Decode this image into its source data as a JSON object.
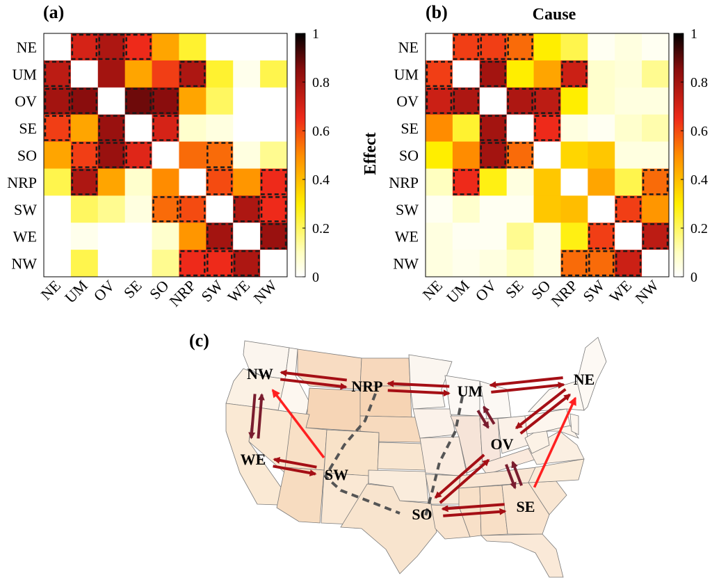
{
  "panels": {
    "a": {
      "label": "(a)"
    },
    "b": {
      "label": "(b)",
      "title": "Cause",
      "ylabel": "Effect"
    },
    "c": {
      "label": "(c)"
    }
  },
  "colorbar": {
    "ticks": [
      "0",
      "0.2",
      "0.4",
      "0.6",
      "0.8",
      "1"
    ],
    "colormap": "hot-reversed"
  },
  "colors": {
    "arrow_dark": "#a50f15",
    "arrow_light": "#ff2020",
    "arrow_maroon": "#7a1c2e",
    "divider": "#555555",
    "dashed_box": "#1a1a1a"
  },
  "chart_data": [
    {
      "type": "heatmap",
      "title": "",
      "panel": "(a)",
      "rows": [
        "NE",
        "UM",
        "OV",
        "SE",
        "SO",
        "NRP",
        "SW",
        "WE",
        "NW"
      ],
      "cols": [
        "NE",
        "UM",
        "OV",
        "SE",
        "SO",
        "NRP",
        "SW",
        "WE",
        "NW"
      ],
      "values": [
        [
          0.0,
          0.7,
          0.78,
          0.65,
          0.45,
          0.25,
          0.0,
          0.0,
          0.0
        ],
        [
          0.75,
          0.0,
          0.8,
          0.45,
          0.62,
          0.78,
          0.25,
          0.03,
          0.22
        ],
        [
          0.8,
          0.85,
          0.0,
          0.88,
          0.85,
          0.45,
          0.2,
          0.0,
          0.0
        ],
        [
          0.62,
          0.45,
          0.82,
          0.0,
          0.7,
          0.08,
          0.05,
          0.0,
          0.0
        ],
        [
          0.45,
          0.62,
          0.82,
          0.68,
          0.0,
          0.55,
          0.55,
          0.05,
          0.15
        ],
        [
          0.22,
          0.78,
          0.45,
          0.08,
          0.5,
          0.0,
          0.6,
          0.48,
          0.65
        ],
        [
          0.0,
          0.2,
          0.15,
          0.05,
          0.55,
          0.6,
          0.0,
          0.78,
          0.65
        ],
        [
          0.0,
          0.03,
          0.0,
          0.0,
          0.08,
          0.48,
          0.8,
          0.0,
          0.82
        ],
        [
          0.0,
          0.22,
          0.0,
          0.0,
          0.15,
          0.65,
          0.65,
          0.78,
          0.0
        ]
      ],
      "zlim": [
        0,
        1
      ],
      "highlighted": [
        [
          0,
          1
        ],
        [
          0,
          2
        ],
        [
          0,
          3
        ],
        [
          1,
          0
        ],
        [
          1,
          5
        ],
        [
          2,
          0
        ],
        [
          2,
          1
        ],
        [
          2,
          3
        ],
        [
          2,
          4
        ],
        [
          3,
          0
        ],
        [
          3,
          2
        ],
        [
          3,
          4
        ],
        [
          4,
          1
        ],
        [
          4,
          2
        ],
        [
          4,
          3
        ],
        [
          4,
          6
        ],
        [
          5,
          1
        ],
        [
          5,
          6
        ],
        [
          5,
          8
        ],
        [
          6,
          4
        ],
        [
          6,
          5
        ],
        [
          6,
          7
        ],
        [
          6,
          8
        ],
        [
          7,
          6
        ],
        [
          7,
          8
        ],
        [
          8,
          5
        ],
        [
          8,
          6
        ],
        [
          8,
          7
        ]
      ]
    },
    {
      "type": "heatmap",
      "title": "Cause",
      "ylabel": "Effect",
      "panel": "(b)",
      "rows": [
        "NE",
        "UM",
        "OV",
        "SE",
        "SO",
        "NRP",
        "SW",
        "WE",
        "NW"
      ],
      "cols": [
        "NE",
        "UM",
        "OV",
        "SE",
        "SO",
        "NRP",
        "SW",
        "WE",
        "NW"
      ],
      "values": [
        [
          0.0,
          0.62,
          0.62,
          0.55,
          0.3,
          0.22,
          0.02,
          0.05,
          0.02
        ],
        [
          0.62,
          0.0,
          0.8,
          0.3,
          0.45,
          0.72,
          0.08,
          0.06,
          0.15
        ],
        [
          0.72,
          0.78,
          0.0,
          0.78,
          0.75,
          0.3,
          0.08,
          0.05,
          0.05
        ],
        [
          0.5,
          0.25,
          0.8,
          0.0,
          0.65,
          0.05,
          0.02,
          0.08,
          0.12
        ],
        [
          0.3,
          0.5,
          0.8,
          0.55,
          0.0,
          0.35,
          0.38,
          0.05,
          0.05
        ],
        [
          0.1,
          0.65,
          0.28,
          0.05,
          0.38,
          0.0,
          0.45,
          0.22,
          0.55
        ],
        [
          0.02,
          0.08,
          0.02,
          0.02,
          0.38,
          0.4,
          0.0,
          0.62,
          0.48
        ],
        [
          0.05,
          0.02,
          0.02,
          0.15,
          0.05,
          0.28,
          0.62,
          0.0,
          0.75
        ],
        [
          0.05,
          0.03,
          0.05,
          0.1,
          0.05,
          0.55,
          0.55,
          0.72,
          0.0
        ]
      ],
      "zlim": [
        0,
        1
      ],
      "highlighted": [
        [
          0,
          1
        ],
        [
          0,
          2
        ],
        [
          0,
          3
        ],
        [
          1,
          0
        ],
        [
          1,
          2
        ],
        [
          1,
          5
        ],
        [
          2,
          0
        ],
        [
          2,
          1
        ],
        [
          2,
          3
        ],
        [
          2,
          4
        ],
        [
          3,
          2
        ],
        [
          3,
          4
        ],
        [
          4,
          2
        ],
        [
          4,
          3
        ],
        [
          5,
          1
        ],
        [
          5,
          8
        ],
        [
          6,
          7
        ],
        [
          7,
          6
        ],
        [
          7,
          8
        ],
        [
          8,
          5
        ],
        [
          8,
          6
        ],
        [
          8,
          7
        ]
      ]
    }
  ],
  "map": {
    "regions": [
      {
        "id": "NW",
        "label": "NW"
      },
      {
        "id": "NRP",
        "label": "NRP"
      },
      {
        "id": "UM",
        "label": "UM"
      },
      {
        "id": "NE",
        "label": "NE"
      },
      {
        "id": "WE",
        "label": "WE"
      },
      {
        "id": "SW",
        "label": "SW"
      },
      {
        "id": "OV",
        "label": "OV"
      },
      {
        "id": "SO",
        "label": "SO"
      },
      {
        "id": "SE",
        "label": "SE"
      }
    ],
    "links": [
      {
        "a": "NW",
        "b": "NRP",
        "style": "pair",
        "color": "dark"
      },
      {
        "a": "NRP",
        "b": "UM",
        "style": "pair",
        "color": "dark"
      },
      {
        "a": "UM",
        "b": "NE",
        "style": "pair",
        "color": "dark"
      },
      {
        "a": "NW",
        "b": "WE",
        "style": "pair",
        "color": "maroon"
      },
      {
        "a": "WE",
        "b": "SW",
        "style": "pair",
        "color": "dark"
      },
      {
        "a": "UM",
        "b": "OV",
        "style": "pair",
        "color": "maroon"
      },
      {
        "a": "NE",
        "b": "OV",
        "style": "pair",
        "color": "dark"
      },
      {
        "a": "OV",
        "b": "SE",
        "style": "pair",
        "color": "maroon"
      },
      {
        "a": "OV",
        "b": "SO",
        "style": "pair",
        "color": "dark"
      },
      {
        "a": "SO",
        "b": "SE",
        "style": "pair",
        "color": "dark"
      },
      {
        "a": "SW",
        "b": "NW",
        "style": "single",
        "color": "light"
      },
      {
        "a": "SE",
        "b": "NE",
        "style": "single",
        "color": "light"
      }
    ]
  }
}
